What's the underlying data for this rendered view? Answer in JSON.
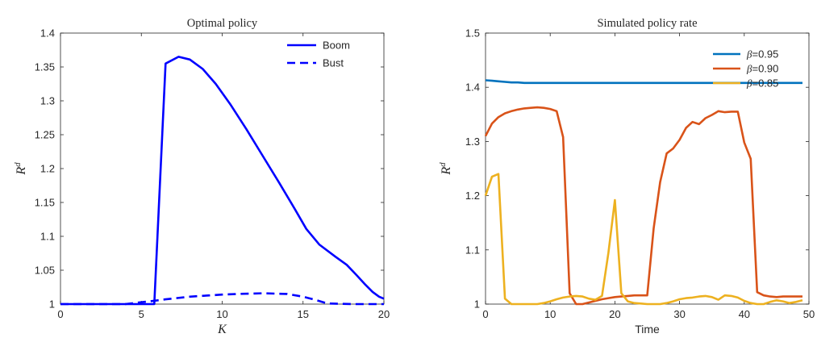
{
  "chart_data": [
    {
      "type": "line",
      "title": "Optimal policy",
      "xlabel": "K",
      "ylabel": "R^d",
      "xlim": [
        0,
        20
      ],
      "ylim": [
        1,
        1.4
      ],
      "xticks": [
        "0",
        "5",
        "10",
        "15",
        "20"
      ],
      "yticks": [
        "1",
        "1.05",
        "1.1",
        "1.15",
        "1.2",
        "1.25",
        "1.3",
        "1.35",
        "1.4"
      ],
      "grid": false,
      "legend_position": "top-right",
      "series": [
        {
          "name": "Boom",
          "color": "#0000ff",
          "style": "solid",
          "x": [
            0,
            5.8,
            6.5,
            7.3,
            8.0,
            8.8,
            9.6,
            10.5,
            11.5,
            12.5,
            13.5,
            14.5,
            15.2,
            16.0,
            17.0,
            17.7,
            18.3,
            18.8,
            19.3,
            19.7,
            20
          ],
          "y": [
            1.0,
            1.0,
            1.355,
            1.365,
            1.361,
            1.347,
            1.325,
            1.295,
            1.258,
            1.219,
            1.18,
            1.14,
            1.111,
            1.088,
            1.07,
            1.058,
            1.043,
            1.03,
            1.018,
            1.011,
            1.008
          ]
        },
        {
          "name": "Bust",
          "color": "#0000ff",
          "style": "dashed",
          "x": [
            0,
            4.0,
            5.5,
            6.5,
            8.0,
            10.0,
            11.0,
            12.5,
            14.0,
            15.0,
            15.8,
            16.5,
            18.0,
            20
          ],
          "y": [
            1.0,
            1.0,
            1.004,
            1.007,
            1.011,
            1.014,
            1.015,
            1.016,
            1.015,
            1.011,
            1.006,
            1.001,
            1.0,
            1.0
          ]
        }
      ]
    },
    {
      "type": "line",
      "title": "Simulated policy rate",
      "xlabel": "Time",
      "ylabel": "R^d",
      "xlim": [
        0,
        50
      ],
      "ylim": [
        1,
        1.5
      ],
      "xticks": [
        "0",
        "10",
        "20",
        "30",
        "40",
        "50"
      ],
      "yticks": [
        "1",
        "1.1",
        "1.2",
        "1.3",
        "1.4",
        "1.5"
      ],
      "grid": false,
      "legend_position": "top-right",
      "series": [
        {
          "name": "β=0.95",
          "color": "#0072bd",
          "x": [
            0,
            1,
            2,
            3,
            4,
            5,
            6,
            8,
            10,
            15,
            20,
            30,
            40,
            49
          ],
          "y": [
            1.413,
            1.412,
            1.411,
            1.41,
            1.409,
            1.409,
            1.408,
            1.408,
            1.408,
            1.408,
            1.408,
            1.408,
            1.408,
            1.408
          ]
        },
        {
          "name": "β=0.90",
          "color": "#d95319",
          "x": [
            0,
            1,
            2,
            3,
            4,
            5,
            6,
            7,
            8,
            9,
            10,
            11,
            12,
            13,
            14,
            15,
            16,
            17,
            18,
            19,
            20,
            21,
            22,
            23,
            24,
            25,
            26,
            27,
            28,
            29,
            30,
            31,
            32,
            33,
            34,
            35,
            36,
            37,
            38,
            39,
            40,
            41,
            42,
            43,
            44,
            45,
            46,
            47,
            48,
            49
          ],
          "y": [
            1.31,
            1.333,
            1.345,
            1.352,
            1.356,
            1.359,
            1.361,
            1.362,
            1.363,
            1.362,
            1.36,
            1.356,
            1.308,
            1.02,
            1.0,
            1.0,
            1.003,
            1.006,
            1.009,
            1.011,
            1.013,
            1.014,
            1.015,
            1.016,
            1.016,
            1.016,
            1.14,
            1.225,
            1.278,
            1.287,
            1.303,
            1.325,
            1.336,
            1.332,
            1.343,
            1.349,
            1.356,
            1.354,
            1.355,
            1.355,
            1.298,
            1.268,
            1.022,
            1.016,
            1.014,
            1.013,
            1.014,
            1.014,
            1.014,
            1.014
          ]
        },
        {
          "name": "β=0.85",
          "color": "#edb120",
          "x": [
            0,
            1,
            2,
            3,
            4,
            5,
            6,
            7,
            8,
            9,
            10,
            11,
            12,
            13,
            14,
            15,
            16,
            17,
            18,
            19,
            20,
            21,
            22,
            23,
            24,
            25,
            26,
            27,
            28,
            29,
            30,
            31,
            32,
            33,
            34,
            35,
            36,
            37,
            38,
            39,
            40,
            41,
            42,
            43,
            44,
            45,
            46,
            47,
            48,
            49
          ],
          "y": [
            1.2,
            1.235,
            1.24,
            1.01,
            1.0,
            1.0,
            1.0,
            1.0,
            1.0,
            1.002,
            1.005,
            1.009,
            1.012,
            1.014,
            1.015,
            1.014,
            1.01,
            1.008,
            1.015,
            1.095,
            1.192,
            1.02,
            1.005,
            1.002,
            1.001,
            1.0,
            1.0,
            1.0,
            1.002,
            1.005,
            1.009,
            1.011,
            1.012,
            1.014,
            1.015,
            1.013,
            1.008,
            1.016,
            1.015,
            1.012,
            1.006,
            1.002,
            1.0,
            1.0,
            1.004,
            1.007,
            1.005,
            1.002,
            1.004,
            1.007
          ]
        }
      ]
    }
  ]
}
